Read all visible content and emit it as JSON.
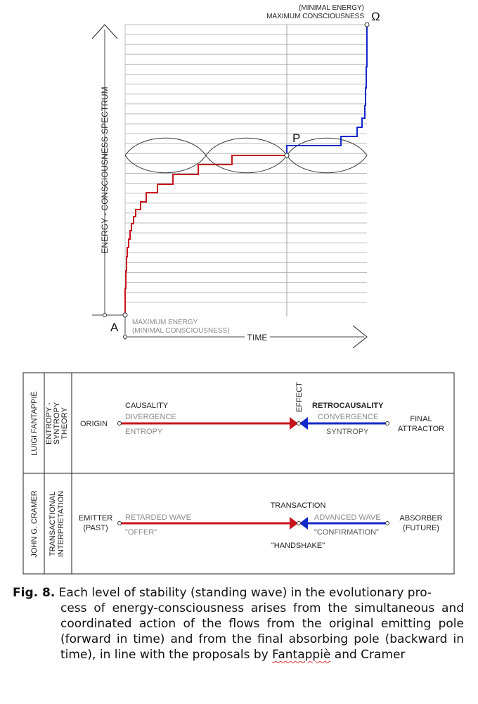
{
  "graph": {
    "y_axis_label": "ENERGY - CONSCIOUSNESS SPECTRUM",
    "x_axis_label": "TIME",
    "point_a": "A",
    "point_p": "P",
    "point_omega": "Ω",
    "top_label_line1": "(MINIMAL ENERGY)",
    "top_label_line2": "MAXIMUM  CONSCIOUSNESS",
    "bottom_label_line1": "MAXIMUM ENERGY",
    "bottom_label_line2": "(MINIMAL CONSCIOUSNESS)",
    "colors": {
      "forward": "#c8141e",
      "backward": "#1428c8",
      "grid": "#bdbdbd"
    }
  },
  "table": {
    "row1": {
      "author": "LUIGI FANTAPPIÈ",
      "theory_line1": "ENTROPY -",
      "theory_line2": "SYNTROPY",
      "theory_line3": "THEORY",
      "origin": "ORIGIN",
      "causality": "CAUSALITY",
      "divergence": "DIVERGENCE",
      "entropy": "ENTROPY",
      "effect": "EFFECT",
      "retrocausality": "RETROCAUSALITY",
      "convergence": "CONVERGENCE",
      "syntropy": "SYNTROPY",
      "final_line1": "FINAL",
      "final_line2": "ATTRACTOR"
    },
    "row2": {
      "author": "JOHN G. CRAMER",
      "theory_line1": "TRANSACTIONAL",
      "theory_line2": "INTERPRETATION",
      "emitter_line1": "EMITTER",
      "emitter_line2": "(PAST)",
      "retarded_wave": "RETARDED WAVE",
      "offer": "\"OFFER\"",
      "transaction": "TRANSACTION",
      "advanced_wave": "ADVANCED WAVE",
      "confirmation": "\"CONFIRMATION\"",
      "handshake": "\"HANDSHAKE\"",
      "absorber_line1": "ABSORBER",
      "absorber_line2": "(FUTURE)"
    }
  },
  "caption": {
    "label": "Fig. 8.",
    "first_line": " Each level of stability (standing wave) in the evolutionary pro-",
    "rest": "cess of energy-consciousness arises from the simultaneous and coordinated action of the flows from the original emitting pole (forward in time) and from the final absorbing pole (backward in time), in line with the proposals by ",
    "name1": "Fantappiè",
    "tail": " and Cramer"
  }
}
